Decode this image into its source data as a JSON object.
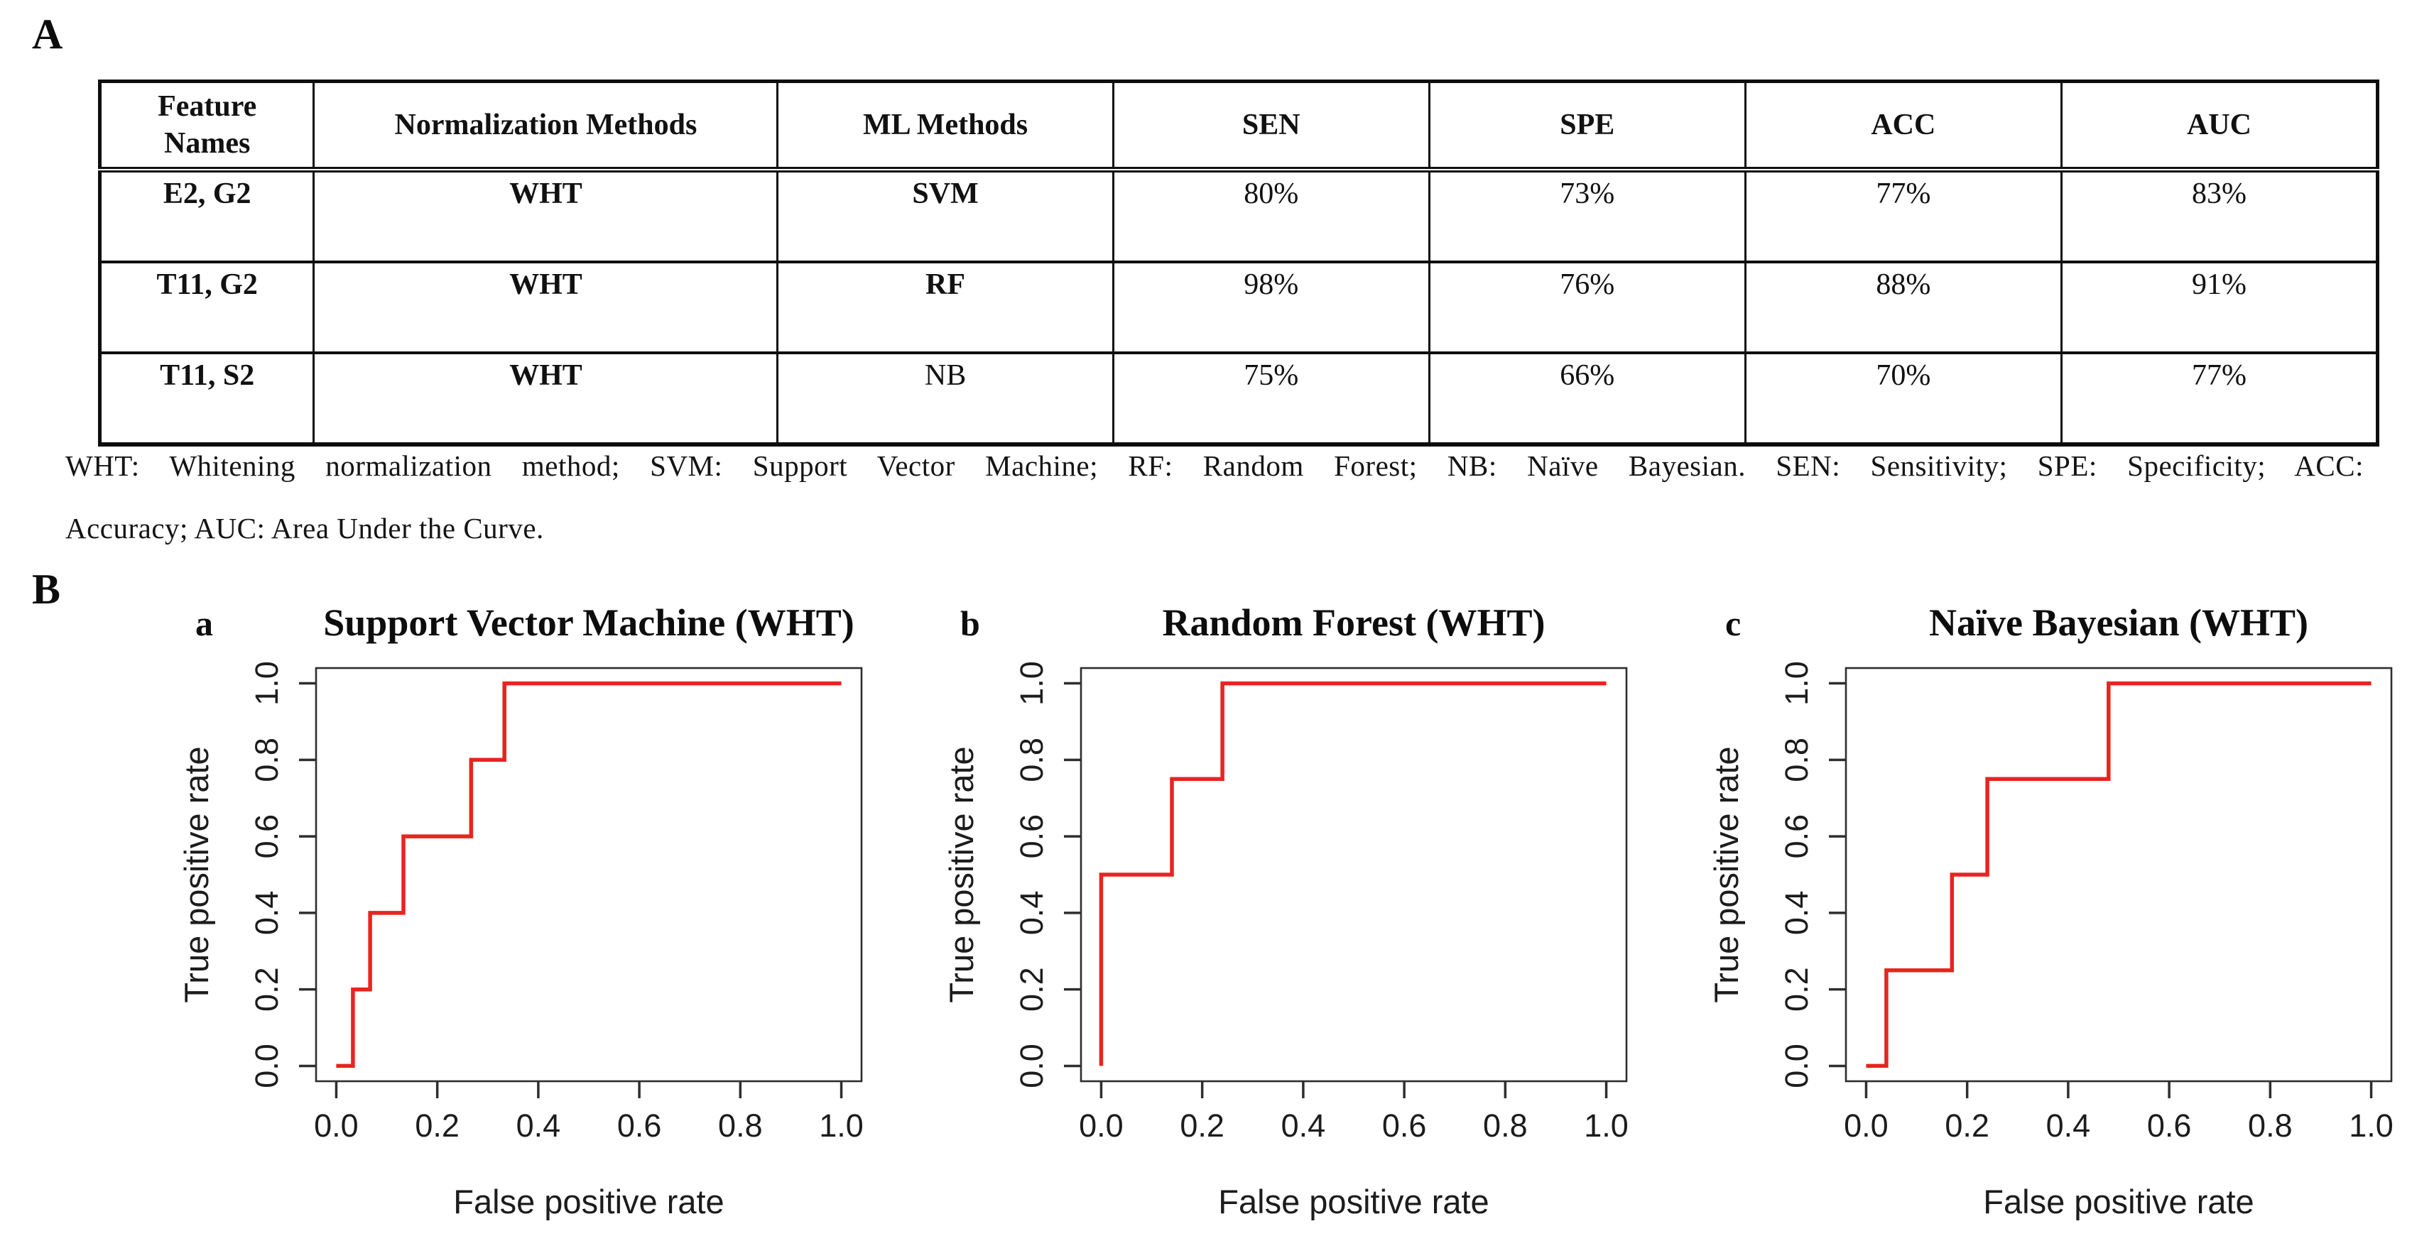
{
  "section_a": {
    "label": "A",
    "table": {
      "headers": [
        "Feature Names",
        "Normalization Methods",
        "ML Methods",
        "SEN",
        "SPE",
        "ACC",
        "AUC"
      ],
      "rows": [
        [
          "E2, G2",
          "WHT",
          "SVM",
          "80%",
          "73%",
          "77%",
          "83%"
        ],
        [
          "T11, G2",
          "WHT",
          "RF",
          "98%",
          "76%",
          "88%",
          "91%"
        ],
        [
          "T11, S2",
          "WHT",
          "NB",
          "75%",
          "66%",
          "70%",
          "77%"
        ]
      ]
    },
    "caption_line1": "WHT: Whitening normalization method; SVM: Support Vector Machine; RF: Random Forest; NB: Naïve Bayesian. SEN: Sensitivity; SPE: Specificity; ACC:",
    "caption_line2": "Accuracy; AUC: Area Under the Curve."
  },
  "section_b": {
    "label": "B"
  },
  "chart_data": [
    {
      "type": "line",
      "panel_letter": "a",
      "title": "Support Vector Machine (WHT)",
      "xlabel": "False positive rate",
      "ylabel": "True positive rate",
      "xlim": [
        0,
        1
      ],
      "ylim": [
        0,
        1
      ],
      "xtick_labels": [
        "0.0",
        "0.2",
        "0.4",
        "0.6",
        "0.8",
        "1.0"
      ],
      "ytick_labels": [
        "0.0",
        "0.2",
        "0.4",
        "0.6",
        "0.8",
        "1.0"
      ],
      "xticks": [
        0,
        0.2,
        0.4,
        0.6,
        0.8,
        1
      ],
      "yticks": [
        0,
        0.2,
        0.4,
        0.6,
        0.8,
        1
      ],
      "grid": false,
      "line_color": "#e8241f",
      "points": [
        [
          0,
          0
        ],
        [
          0.033,
          0
        ],
        [
          0.033,
          0.2
        ],
        [
          0.067,
          0.2
        ],
        [
          0.067,
          0.4
        ],
        [
          0.133,
          0.4
        ],
        [
          0.133,
          0.6
        ],
        [
          0.267,
          0.6
        ],
        [
          0.267,
          0.8
        ],
        [
          0.333,
          0.8
        ],
        [
          0.333,
          1
        ],
        [
          1,
          1
        ]
      ]
    },
    {
      "type": "line",
      "panel_letter": "b",
      "title": "Random Forest (WHT)",
      "xlabel": "False positive rate",
      "ylabel": "True positive rate",
      "xlim": [
        0,
        1
      ],
      "ylim": [
        0,
        1
      ],
      "xtick_labels": [
        "0.0",
        "0.2",
        "0.4",
        "0.6",
        "0.8",
        "1.0"
      ],
      "ytick_labels": [
        "0.0",
        "0.2",
        "0.4",
        "0.6",
        "0.8",
        "1.0"
      ],
      "xticks": [
        0,
        0.2,
        0.4,
        0.6,
        0.8,
        1
      ],
      "yticks": [
        0,
        0.2,
        0.4,
        0.6,
        0.8,
        1
      ],
      "grid": false,
      "line_color": "#e8241f",
      "points": [
        [
          0,
          0
        ],
        [
          0,
          0.5
        ],
        [
          0.14,
          0.5
        ],
        [
          0.14,
          0.75
        ],
        [
          0.24,
          0.75
        ],
        [
          0.24,
          1
        ],
        [
          1,
          1
        ]
      ]
    },
    {
      "type": "line",
      "panel_letter": "c",
      "title": "Naïve Bayesian (WHT)",
      "xlabel": "False positive rate",
      "ylabel": "True positive rate",
      "xlim": [
        0,
        1
      ],
      "ylim": [
        0,
        1
      ],
      "xtick_labels": [
        "0.0",
        "0.2",
        "0.4",
        "0.6",
        "0.8",
        "1.0"
      ],
      "ytick_labels": [
        "0.0",
        "0.2",
        "0.4",
        "0.6",
        "0.8",
        "1.0"
      ],
      "xticks": [
        0,
        0.2,
        0.4,
        0.6,
        0.8,
        1
      ],
      "yticks": [
        0,
        0.2,
        0.4,
        0.6,
        0.8,
        1
      ],
      "grid": false,
      "line_color": "#e8241f",
      "points": [
        [
          0,
          0
        ],
        [
          0.04,
          0
        ],
        [
          0.04,
          0.25
        ],
        [
          0.17,
          0.25
        ],
        [
          0.17,
          0.5
        ],
        [
          0.24,
          0.5
        ],
        [
          0.24,
          0.75
        ],
        [
          0.48,
          0.75
        ],
        [
          0.48,
          1
        ],
        [
          1,
          1
        ]
      ]
    }
  ]
}
